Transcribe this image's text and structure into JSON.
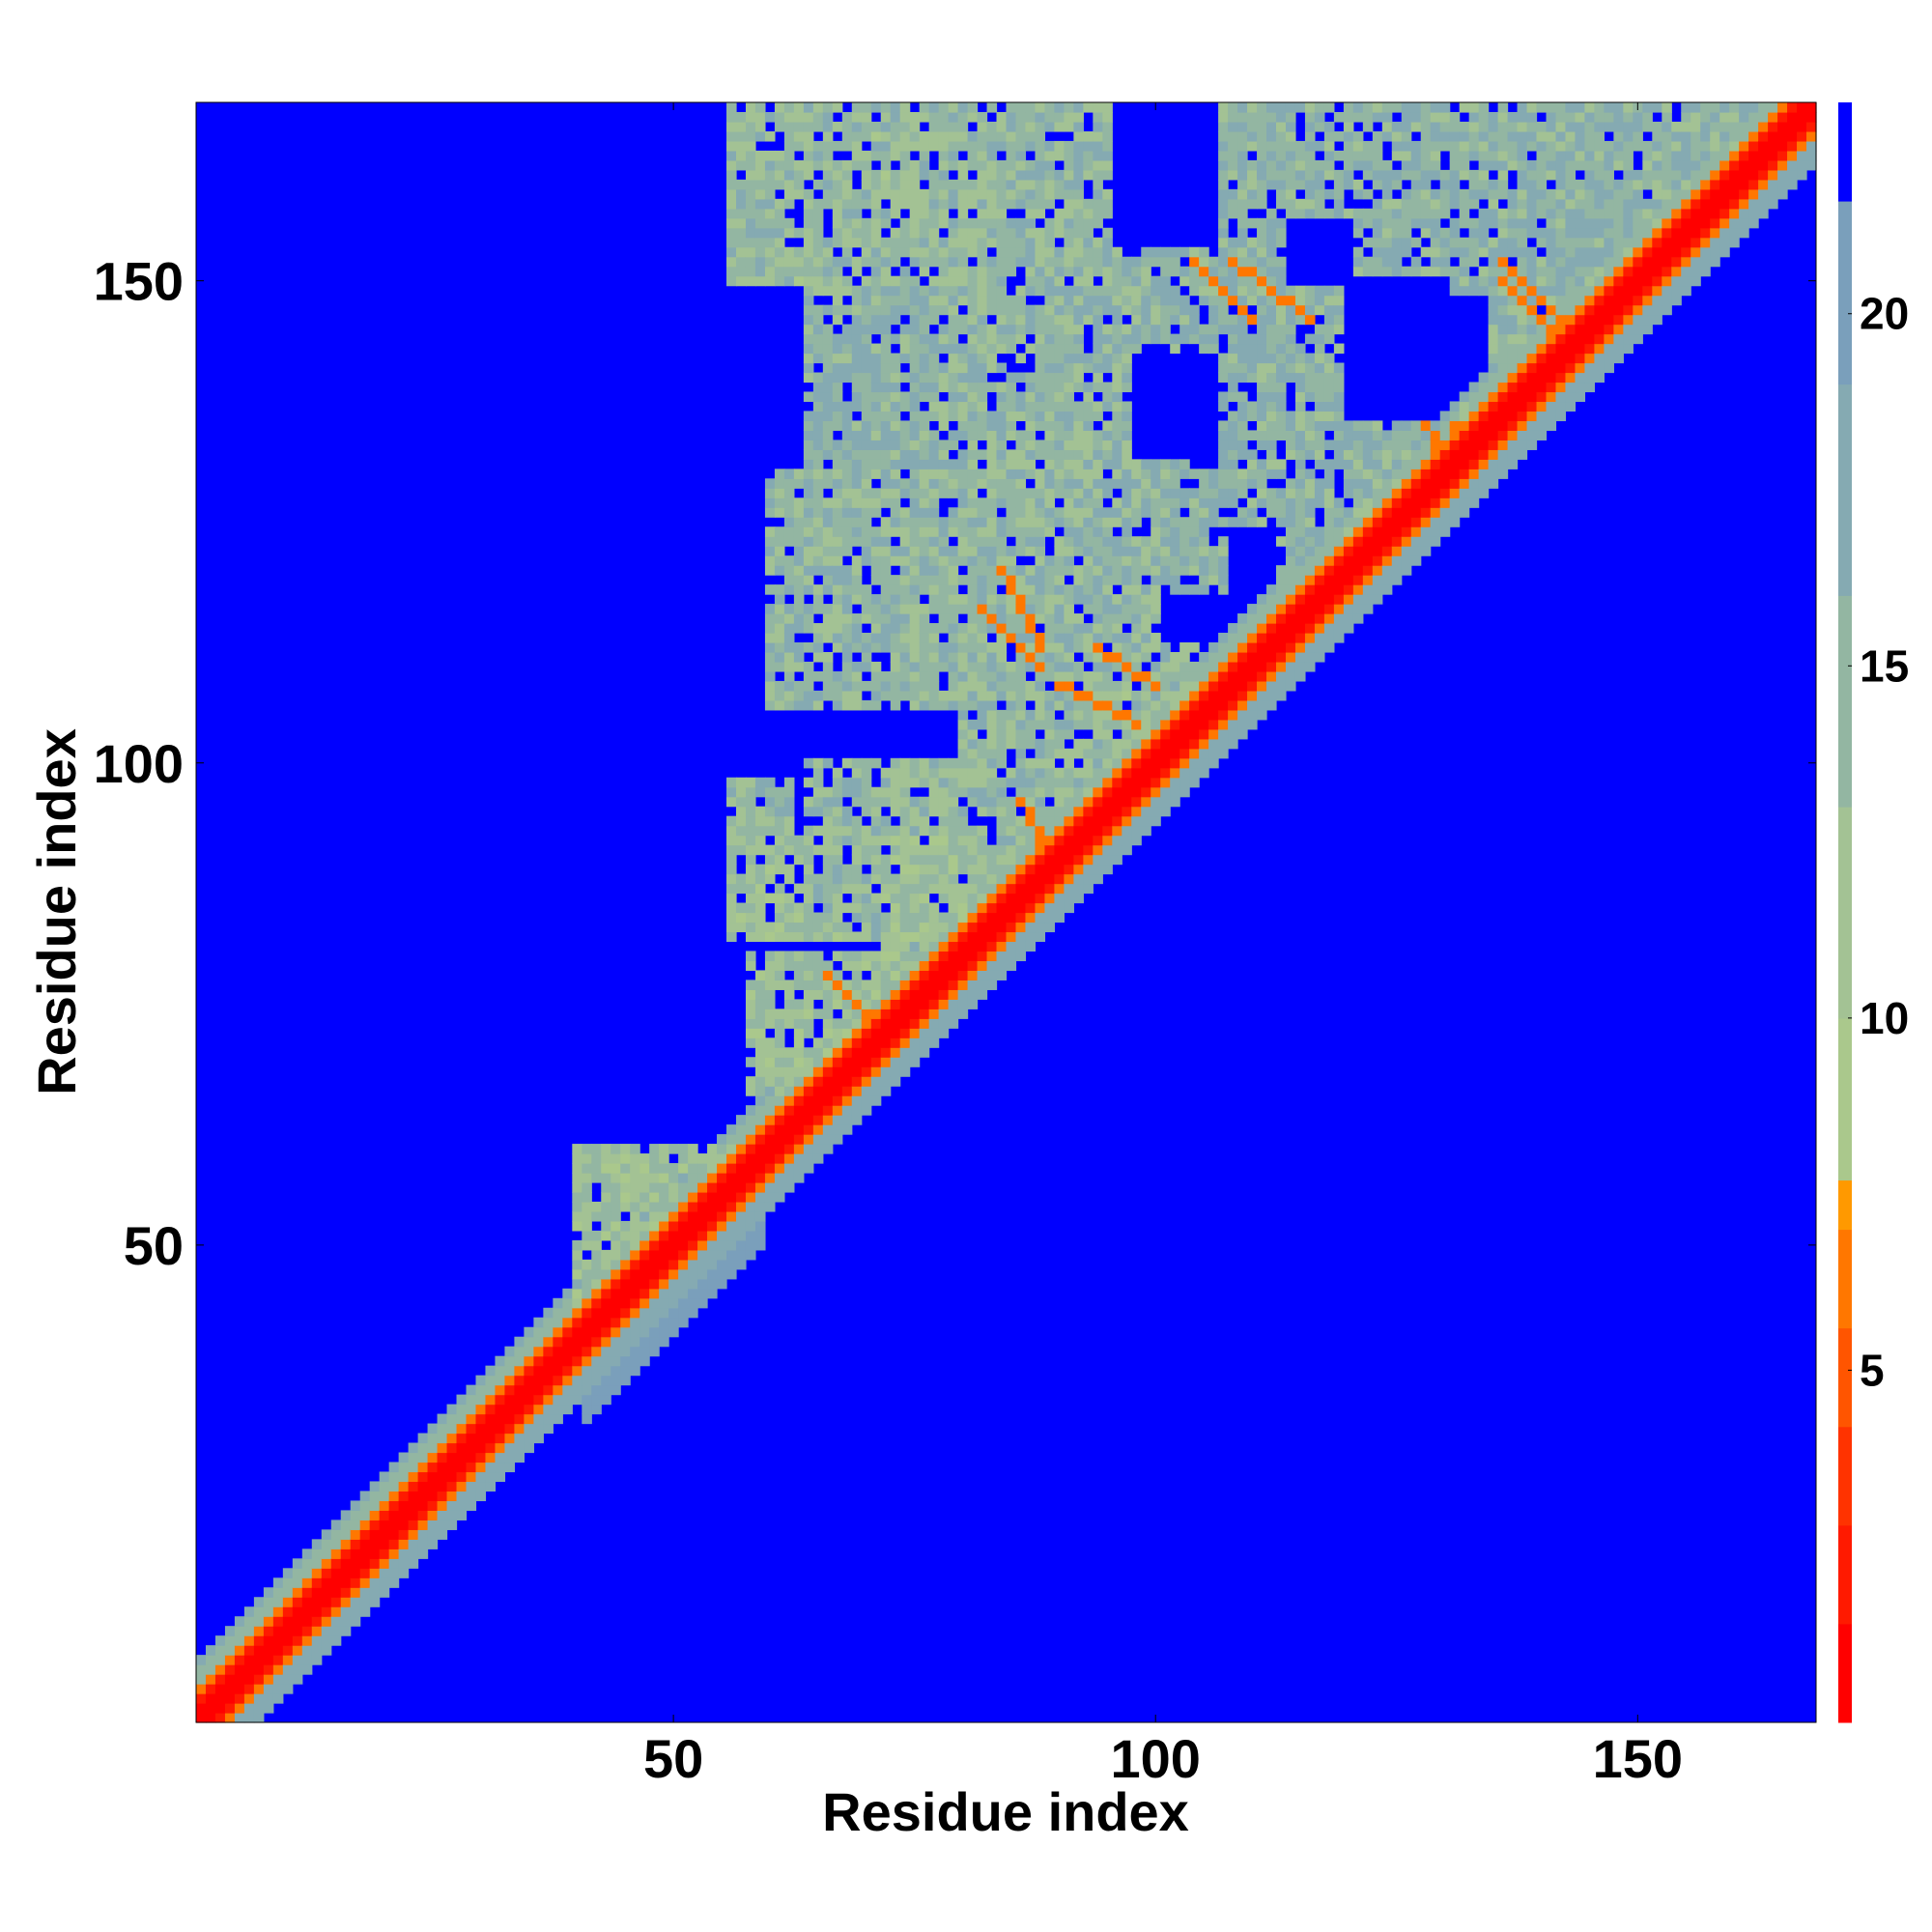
{
  "chart_data": {
    "type": "heatmap",
    "description_of_values": "pairwise residue distance map",
    "xlabel": "Residue index",
    "ylabel": "Residue index",
    "n": 168,
    "xlim": [
      0.5,
      168.5
    ],
    "ylim": [
      0.5,
      168.5
    ],
    "x_ticks": [
      50,
      100,
      150
    ],
    "y_ticks": [
      50,
      100,
      150
    ],
    "x_tick_labels": [
      "50",
      "100",
      "150"
    ],
    "y_tick_labels": [
      "50",
      "100",
      "150"
    ],
    "colorbar": {
      "range": [
        0,
        23
      ],
      "ticks": [
        5,
        10,
        15,
        20
      ],
      "tick_labels": [
        "5",
        "10",
        "15",
        "20"
      ],
      "bins": [
        {
          "from": 0,
          "to": 1.4,
          "color": "#ff0000"
        },
        {
          "from": 1.4,
          "to": 2.8,
          "color": "#ff1a00"
        },
        {
          "from": 2.8,
          "to": 4.2,
          "color": "#ff3300"
        },
        {
          "from": 4.2,
          "to": 5.6,
          "color": "#ff5500"
        },
        {
          "from": 5.6,
          "to": 7.0,
          "color": "#ff7700"
        },
        {
          "from": 7.0,
          "to": 7.7,
          "color": "#ff9900"
        },
        {
          "from": 7.7,
          "to": 10.0,
          "color": "#aac88c"
        },
        {
          "from": 10.0,
          "to": 13.0,
          "color": "#a3c294"
        },
        {
          "from": 13.0,
          "to": 16.0,
          "color": "#93b6a2"
        },
        {
          "from": 16.0,
          "to": 19.0,
          "color": "#85aab2"
        },
        {
          "from": 19.0,
          "to": 21.6,
          "color": "#7a9fbb"
        },
        {
          "from": 21.6,
          "to": 23.0,
          "color": "#0000ff"
        }
      ]
    },
    "background_color": "#0000ff",
    "diagonal_band": {
      "red_halfwidth": 2,
      "orange_halfwidth": 3,
      "green_halfwidth": 6
    },
    "contact_regions": [
      {
        "i": [
          40,
          56
        ],
        "j": [
          42,
          60
        ],
        "value": 12
      },
      {
        "i": [
          56,
          62
        ],
        "j": [
          88,
          98
        ],
        "value": 13
      },
      {
        "i": [
          58,
          80
        ],
        "j": [
          66,
          80
        ],
        "value": 12
      },
      {
        "i": [
          64,
          78
        ],
        "j": [
          82,
          100
        ],
        "value": 13
      },
      {
        "i": [
          72,
          80
        ],
        "j": [
          78,
          92
        ],
        "value": 12
      },
      {
        "i": [
          76,
          86
        ],
        "j": [
          86,
          100
        ],
        "value": 13
      },
      {
        "i": [
          80,
          96
        ],
        "j": [
          80,
          106
        ],
        "value": 14
      },
      {
        "i": [
          82,
          92
        ],
        "j": [
          56,
          64
        ],
        "value": 12
      },
      {
        "i": [
          86,
          98
        ],
        "j": [
          92,
          106
        ],
        "value": 14
      },
      {
        "i": [
          92,
          104
        ],
        "j": [
          98,
          112
        ],
        "value": 13
      },
      {
        "i": [
          56,
          82
        ],
        "j": [
          150,
          168
        ],
        "value": 13
      },
      {
        "i": [
          70,
          86
        ],
        "j": [
          114,
          128
        ],
        "value": 14
      },
      {
        "i": [
          78,
          100
        ],
        "j": [
          128,
          168
        ],
        "value": 14
      },
      {
        "i": [
          94,
          130
        ],
        "j": [
          140,
          168
        ],
        "value": 15
      },
      {
        "i": [
          104,
          124
        ],
        "j": [
          84,
          100
        ],
        "value": 14
      },
      {
        "i": [
          106,
          130
        ],
        "j": [
          60,
          96
        ],
        "value": 14
      },
      {
        "i": [
          118,
          168
        ],
        "j": [
          96,
          136
        ],
        "value": 15
      },
      {
        "i": [
          124,
          168
        ],
        "j": [
          64,
          120
        ],
        "value": 15
      },
      {
        "i": [
          128,
          166
        ],
        "j": [
          68,
          90
        ],
        "value": 15
      },
      {
        "i": [
          130,
          168
        ],
        "j": [
          120,
          168
        ],
        "value": 15
      }
    ],
    "contact_lines": [
      {
        "i": [
          84,
          88
        ],
        "j": [
          112,
          120
        ],
        "value": 6
      },
      {
        "i": [
          94,
          100
        ],
        "j": [
          108,
          112
        ],
        "value": 6
      },
      {
        "i": [
          104,
          108
        ],
        "j": [
          90,
          98
        ],
        "value": 6
      },
      {
        "i": [
          110,
          116
        ],
        "j": [
          82,
          88
        ],
        "value": 6
      },
      {
        "i": [
          86,
          90
        ],
        "j": [
          88,
          96
        ],
        "value": 6
      },
      {
        "i": [
          66,
          72
        ],
        "j": [
          72,
          78
        ],
        "value": 6
      },
      {
        "i": [
          108,
          116
        ],
        "j": [
          146,
          152
        ],
        "value": 6
      },
      {
        "i": [
          126,
          130
        ],
        "j": [
          132,
          138
        ],
        "value": 6
      },
      {
        "i": [
          136,
          142
        ],
        "j": [
          146,
          152
        ],
        "value": 6
      },
      {
        "i": [
          144,
          150
        ],
        "j": [
          136,
          142
        ],
        "value": 6
      },
      {
        "i": [
          146,
          152
        ],
        "j": [
          104,
          110
        ],
        "value": 6
      },
      {
        "i": [
          130,
          136
        ],
        "j": [
          130,
          136
        ],
        "value": 6
      }
    ],
    "empty_regions": [
      {
        "i": [
          96,
          106
        ],
        "j": [
          154,
          168
        ],
        "value": 23
      },
      {
        "i": [
          100,
          106
        ],
        "j": [
          132,
          140
        ],
        "value": 23
      },
      {
        "i": [
          132,
          142
        ],
        "j": [
          98,
          106
        ],
        "value": 23
      },
      {
        "i": [
          144,
          150
        ],
        "j": [
          124,
          130
        ],
        "value": 23
      },
      {
        "i": [
          120,
          130
        ],
        "j": [
          136,
          150
        ],
        "value": 23
      },
      {
        "i": [
          140,
          148
        ],
        "j": [
          128,
          134
        ],
        "value": 23
      },
      {
        "i": [
          150,
          156
        ],
        "j": [
          114,
          120
        ],
        "value": 23
      },
      {
        "i": [
          116,
          124
        ],
        "j": [
          108,
          112
        ],
        "value": 23
      },
      {
        "i": [
          162,
          168
        ],
        "j": [
          100,
          104
        ],
        "value": 23
      }
    ]
  }
}
